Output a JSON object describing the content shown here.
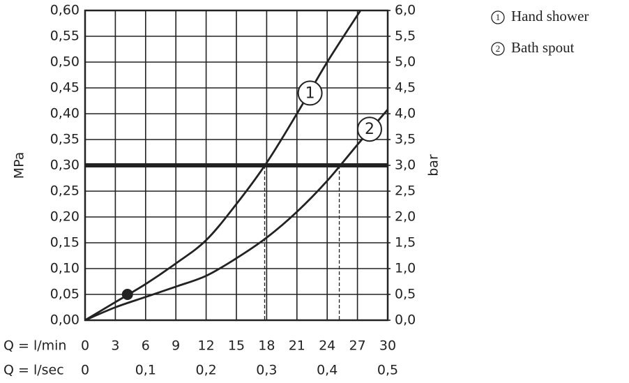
{
  "chart_data": {
    "type": "line",
    "y_label": "MPa",
    "y2_label": "bar",
    "x_label": "Q = l/min",
    "x2_label": "Q = l/sec",
    "xlim": [
      0,
      30
    ],
    "xticks": [
      0,
      3,
      6,
      9,
      12,
      15,
      18,
      21,
      24,
      27,
      30
    ],
    "x2lim": [
      0,
      0.5
    ],
    "x2ticks": [
      0,
      {
        "value": 0.1,
        "label": "0,1"
      },
      {
        "value": 0.2,
        "label": "0,2"
      },
      {
        "value": 0.3,
        "label": "0,3"
      },
      {
        "value": 0.4,
        "label": "0,4"
      },
      {
        "value": 0.5,
        "label": "0,5"
      }
    ],
    "ylim": [
      0,
      0.6
    ],
    "yticks": [
      {
        "value": 0,
        "label": "0,00"
      },
      {
        "value": 0.05,
        "label": "0,05"
      },
      {
        "value": 0.1,
        "label": "0,10"
      },
      {
        "value": 0.15,
        "label": "0,15"
      },
      {
        "value": 0.2,
        "label": "0,20"
      },
      {
        "value": 0.25,
        "label": "0,25"
      },
      {
        "value": 0.3,
        "label": "0,30"
      },
      {
        "value": 0.35,
        "label": "0,35"
      },
      {
        "value": 0.4,
        "label": "0,40"
      },
      {
        "value": 0.45,
        "label": "0,45"
      },
      {
        "value": 0.5,
        "label": "0,50"
      },
      {
        "value": 0.55,
        "label": "0,55"
      },
      {
        "value": 0.6,
        "label": "0,60"
      }
    ],
    "y2lim": [
      0,
      6
    ],
    "y2ticks": [
      {
        "value": 0,
        "label": "0,0"
      },
      {
        "value": 0.5,
        "label": "0,5"
      },
      {
        "value": 1,
        "label": "1,0"
      },
      {
        "value": 1.5,
        "label": "1,5"
      },
      {
        "value": 2,
        "label": "2,0"
      },
      {
        "value": 2.5,
        "label": "2,5"
      },
      {
        "value": 3,
        "label": "3,0"
      },
      {
        "value": 3.5,
        "label": "3,5"
      },
      {
        "value": 4,
        "label": "4,0"
      },
      {
        "value": 4.5,
        "label": "4,5"
      },
      {
        "value": 5,
        "label": "5,0"
      },
      {
        "value": 5.5,
        "label": "5,5"
      },
      {
        "value": 6,
        "label": "6,0"
      }
    ],
    "grid": true,
    "color": "#222222",
    "reference_line": {
      "y": 0.3
    },
    "drop_lines": [
      17.8,
      25.2
    ],
    "point": {
      "x": 4.2,
      "y": 0.05
    },
    "series": [
      {
        "name": "Hand shower",
        "label": "1",
        "label_at": {
          "x": 22.3,
          "y": 0.44
        },
        "x": [
          0,
          3,
          6,
          9,
          12,
          15,
          18,
          21,
          24,
          27.3
        ],
        "values": [
          0,
          0.035,
          0.07,
          0.11,
          0.155,
          0.225,
          0.305,
          0.4,
          0.5,
          0.6
        ]
      },
      {
        "name": "Bath spout",
        "label": "2",
        "label_at": {
          "x": 28.2,
          "y": 0.37
        },
        "x": [
          0,
          3,
          6,
          9,
          12,
          15,
          18,
          21,
          24,
          27,
          30
        ],
        "values": [
          0,
          0.025,
          0.045,
          0.065,
          0.086,
          0.12,
          0.16,
          0.21,
          0.27,
          0.34,
          0.408
        ]
      }
    ]
  }
}
